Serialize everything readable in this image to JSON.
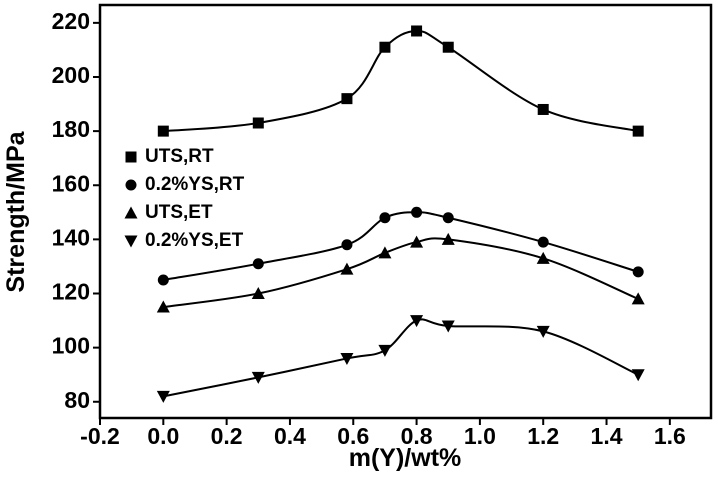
{
  "chart_data": {
    "type": "line",
    "xlabel": "m(Y)/wt%",
    "ylabel": "Strength/MPa",
    "x": [
      0,
      0.3,
      0.58,
      0.7,
      0.8,
      0.9,
      1.2,
      1.5
    ],
    "series": [
      {
        "name": "UTS,RT",
        "color": "#000000",
        "marker": "square",
        "values": [
          180,
          183,
          192,
          211,
          217,
          211,
          188,
          180
        ]
      },
      {
        "name": "0.2%YS,RT",
        "color": "#000000",
        "marker": "circle",
        "values": [
          125,
          131,
          138,
          148,
          150,
          148,
          139,
          128
        ]
      },
      {
        "name": "UTS,ET",
        "color": "#000000",
        "marker": "triangle-up",
        "values": [
          115,
          120,
          129,
          135,
          139,
          140,
          133,
          118
        ]
      },
      {
        "name": "0.2%YS,ET",
        "color": "#000000",
        "marker": "triangle-down",
        "values": [
          82,
          89,
          96,
          99,
          110,
          108,
          106,
          90
        ]
      }
    ],
    "xlim": [
      -0.2,
      1.73
    ],
    "ylim": [
      74,
      226.6
    ],
    "xticks": [
      -0.2,
      {
        "value": 0,
        "label": "0.0"
      },
      0.2,
      0.4,
      0.6,
      0.8,
      {
        "value": 1,
        "label": "1.0"
      },
      1.2,
      1.4,
      1.6
    ],
    "yticks": [
      80,
      100,
      120,
      140,
      160,
      180,
      200,
      220
    ],
    "legend": "left"
  }
}
